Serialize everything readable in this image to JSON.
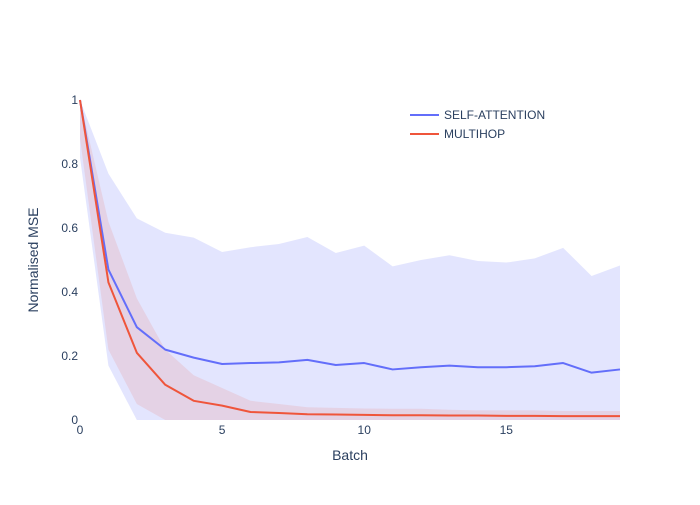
{
  "chart_data": {
    "type": "line",
    "title": "",
    "xlabel": "Batch",
    "ylabel": "Normalised MSE",
    "xlim": [
      0,
      19
    ],
    "ylim": [
      0,
      1
    ],
    "x_ticks": [
      {
        "value": 0,
        "label": "0"
      },
      {
        "value": 5,
        "label": "5"
      },
      {
        "value": 10,
        "label": "10"
      },
      {
        "value": 15,
        "label": "15"
      }
    ],
    "y_ticks": [
      {
        "value": 0,
        "label": "0"
      },
      {
        "value": 0.2,
        "label": "0.2"
      },
      {
        "value": 0.4,
        "label": "0.4"
      },
      {
        "value": 0.6,
        "label": "0.6"
      },
      {
        "value": 0.8,
        "label": "0.8"
      },
      {
        "value": 1,
        "label": "1"
      }
    ],
    "grid": false,
    "legend_position": "top-right",
    "x": [
      0,
      1,
      2,
      3,
      4,
      5,
      6,
      7,
      8,
      9,
      10,
      11,
      12,
      13,
      14,
      15,
      16,
      17,
      18,
      19
    ],
    "series": [
      {
        "name": "SELF-ATTENTION",
        "color": "#636efa",
        "band_color": "rgba(99,110,250,0.18)",
        "values": [
          1.0,
          0.47,
          0.29,
          0.22,
          0.195,
          0.175,
          0.178,
          0.18,
          0.188,
          0.172,
          0.178,
          0.158,
          0.165,
          0.17,
          0.165,
          0.165,
          0.168,
          0.178,
          0.148,
          0.158
        ],
        "upper": [
          1.0,
          0.77,
          0.63,
          0.585,
          0.57,
          0.525,
          0.54,
          0.55,
          0.572,
          0.522,
          0.545,
          0.48,
          0.5,
          0.515,
          0.497,
          0.492,
          0.505,
          0.538,
          0.45,
          0.483
        ],
        "lower": [
          0.82,
          0.17,
          0.0,
          0.0,
          0.0,
          0.0,
          0.0,
          0.0,
          0.0,
          0.0,
          0.0,
          0.0,
          0.0,
          0.0,
          0.0,
          0.0,
          0.0,
          0.0,
          0.0,
          0.0
        ]
      },
      {
        "name": "MULTIHOP",
        "color": "#ef553b",
        "band_color": "rgba(239,85,59,0.13)",
        "values": [
          1.0,
          0.43,
          0.21,
          0.11,
          0.06,
          0.045,
          0.025,
          0.022,
          0.018,
          0.017,
          0.016,
          0.015,
          0.015,
          0.014,
          0.014,
          0.013,
          0.013,
          0.012,
          0.012,
          0.012
        ],
        "upper": [
          1.0,
          0.62,
          0.38,
          0.22,
          0.14,
          0.1,
          0.06,
          0.05,
          0.04,
          0.038,
          0.036,
          0.035,
          0.035,
          0.032,
          0.03,
          0.03,
          0.03,
          0.028,
          0.028,
          0.028
        ],
        "lower": [
          0.88,
          0.22,
          0.05,
          0.0,
          0.0,
          0.0,
          0.0,
          0.0,
          0.0,
          0.0,
          0.0,
          0.0,
          0.0,
          0.0,
          0.0,
          0.0,
          0.0,
          0.0,
          0.0,
          0.0
        ]
      }
    ]
  }
}
